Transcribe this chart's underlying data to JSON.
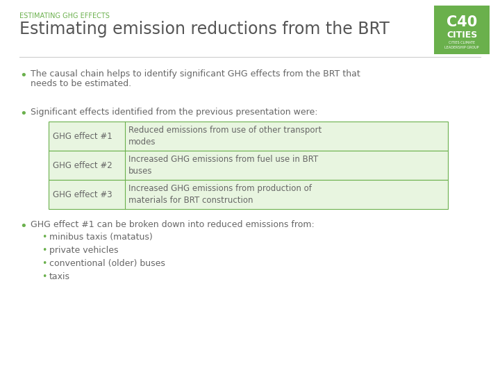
{
  "background_color": "#ffffff",
  "subtitle": "ESTIMATING GHG EFFECTS",
  "subtitle_color": "#6ab04c",
  "subtitle_fontsize": 7,
  "title": "Estimating emission reductions from the BRT",
  "title_color": "#555555",
  "title_fontsize": 17,
  "logo_bg_color": "#6ab04c",
  "logo_text_c40": "C40",
  "logo_text_cities": "CITIES",
  "logo_subtext": "CITIES CLIMATE\nLEADERSHIP GROUP",
  "bullet_color": "#6ab04c",
  "text_color": "#666666",
  "body_fontsize": 9,
  "bullet1_line1": "The causal chain helps to identify significant GHG effects from the BRT that",
  "bullet1_line2": "needs to be estimated.",
  "bullet2": "Significant effects identified from the previous presentation were:",
  "table_border_color": "#6ab04c",
  "table_bg_color": "#e8f5e0",
  "table_rows": [
    [
      "GHG effect #1",
      "Reduced emissions from use of other transport\nmodes"
    ],
    [
      "GHG effect #2",
      "Increased GHG emissions from fuel use in BRT\nbuses"
    ],
    [
      "GHG effect #3",
      "Increased GHG emissions from production of\nmaterials for BRT construction"
    ]
  ],
  "bullet3": "GHG effect #1 can be broken down into reduced emissions from:",
  "sub_bullets": [
    "minibus taxis (matatus)",
    "private vehicles",
    "conventional (older) buses",
    "taxis"
  ]
}
